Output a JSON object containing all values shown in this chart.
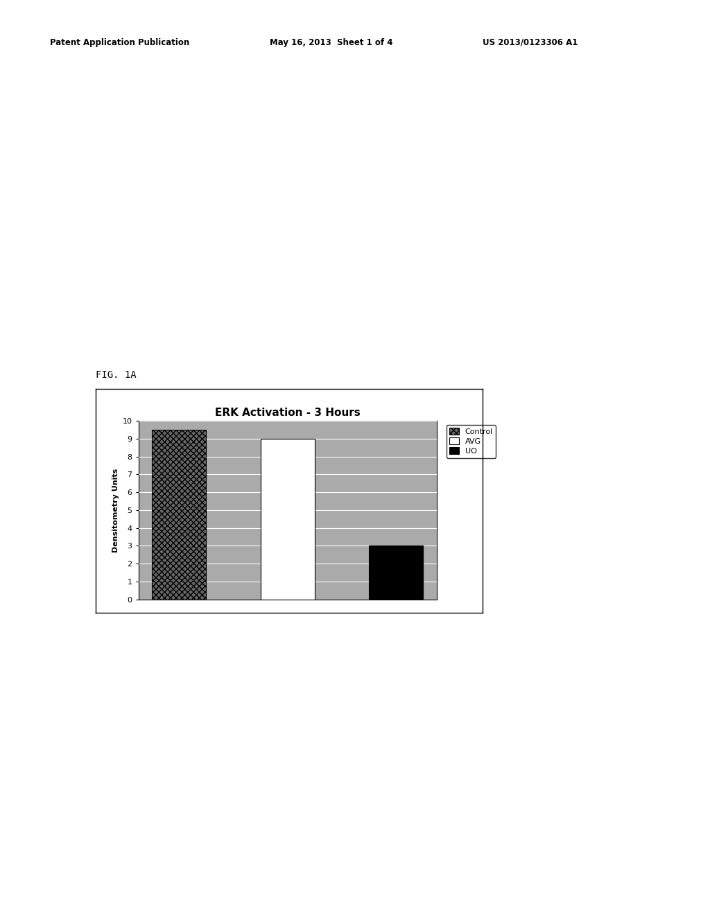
{
  "title": "ERK Activation - 3 Hours",
  "ylabel": "Densitometry Units",
  "ylim": [
    0,
    10
  ],
  "yticks": [
    0,
    1,
    2,
    3,
    4,
    5,
    6,
    7,
    8,
    9,
    10
  ],
  "categories": [
    "Control",
    "AVG",
    "UO"
  ],
  "values": [
    9.5,
    9.0,
    3.0
  ],
  "bar_colors": [
    "#555555",
    "#ffffff",
    "#000000"
  ],
  "bar_edge_colors": [
    "#000000",
    "#000000",
    "#000000"
  ],
  "legend_labels": [
    "Control",
    "AVG",
    "UO"
  ],
  "legend_colors": [
    "#555555",
    "#ffffff",
    "#000000"
  ],
  "background_color": "#ffffff",
  "chart_bg_color": "#aaaaaa",
  "title_fontsize": 11,
  "axis_fontsize": 8,
  "tick_fontsize": 8,
  "legend_fontsize": 8,
  "bar_width": 0.5,
  "header_left": "Patent Application Publication",
  "header_mid": "May 16, 2013  Sheet 1 of 4",
  "header_right": "US 2013/0123306 A1",
  "fig_label": "FIG. 1A"
}
